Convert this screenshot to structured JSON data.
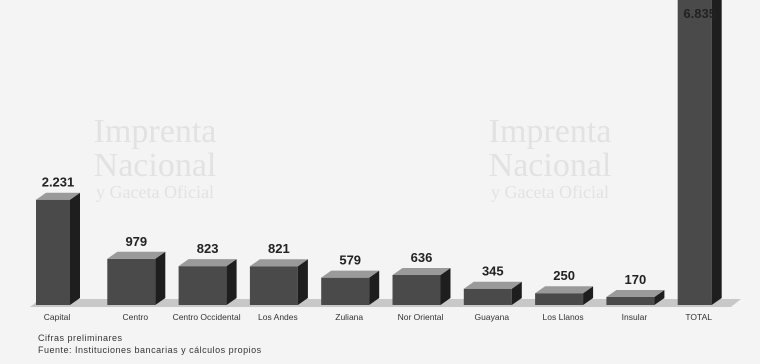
{
  "chart_data": {
    "type": "bar",
    "title": "",
    "xlabel": "",
    "ylabel": "",
    "ylim": [
      0,
      7000
    ],
    "grid": false,
    "legend": "none",
    "style": "3d-columns",
    "categories": [
      "Capital",
      "Centro",
      "Centro Occidental",
      "Los Andes",
      "Zuliana",
      "Nor Oriental",
      "Guayana",
      "Los Llanos",
      "Insular",
      "TOTAL"
    ],
    "values": [
      2231,
      979,
      823,
      821,
      579,
      636,
      345,
      250,
      170,
      6835
    ],
    "value_labels": [
      "2.231",
      "979",
      "823",
      "821",
      "579",
      "636",
      "345",
      "250",
      "170",
      "6.835"
    ],
    "colors": {
      "front": "#4a4a4a",
      "side": "#1e1e1e",
      "top": "#9a9a9a",
      "floor": "#c8c8c8"
    }
  },
  "notes": {
    "preliminary": "Cifras preliminares",
    "source": "Fuente: Instituciones bancarias y cálculos propios"
  },
  "watermark": {
    "line1": "Imprenta",
    "line2": "Nacional",
    "line3": "y Gaceta Oficial",
    "color": "#e2e2e2"
  }
}
